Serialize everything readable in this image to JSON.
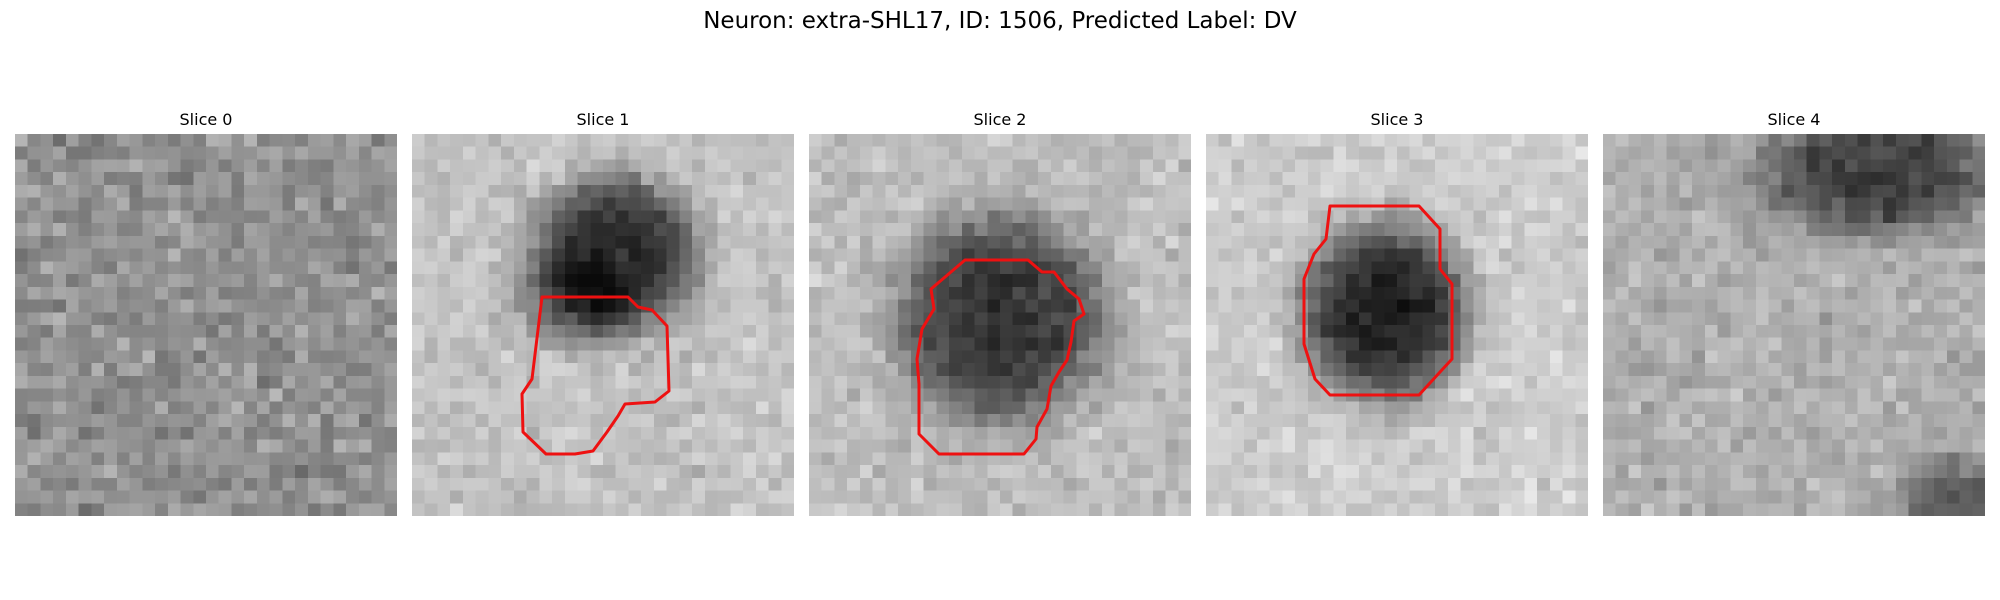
{
  "figure": {
    "title": "Neuron: extra-SHL17, ID: 1506, Predicted Label: DV"
  },
  "panels": [
    {
      "title": "Slice 0",
      "has_contour": false,
      "contour_color": "#ee1111"
    },
    {
      "title": "Slice 1",
      "has_contour": true,
      "contour_color": "#ee1111"
    },
    {
      "title": "Slice 2",
      "has_contour": true,
      "contour_color": "#ee1111"
    },
    {
      "title": "Slice 3",
      "has_contour": true,
      "contour_color": "#ee1111"
    },
    {
      "title": "Slice 4",
      "has_contour": false,
      "contour_color": "#ee1111"
    }
  ],
  "colormap": "gray"
}
